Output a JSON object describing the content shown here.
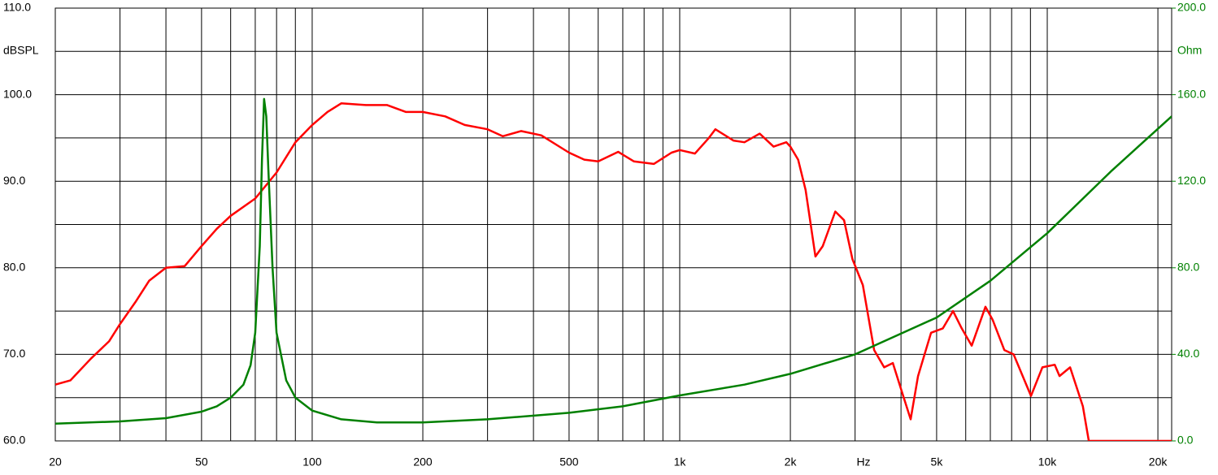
{
  "chart_data": {
    "type": "line",
    "y_label": "dBSPL",
    "y2_label": "Ohm",
    "x_label": "Hz",
    "xscale": "log",
    "grid": true,
    "xlim": [
      20,
      21800
    ],
    "xticks": [
      20,
      50,
      100,
      200,
      500,
      {
        "value": 1000,
        "label": "1k"
      },
      {
        "value": 2000,
        "label": "2k"
      },
      {
        "value": 5000,
        "label": "5k"
      },
      {
        "value": 10000,
        "label": "10k"
      },
      {
        "value": 20000,
        "label": "20k"
      }
    ],
    "xgrid": [
      30,
      40,
      60,
      70,
      80,
      90,
      300,
      400,
      600,
      700,
      800,
      900,
      3000,
      4000,
      6000,
      7000,
      8000,
      9000
    ],
    "ylim": [
      60,
      110
    ],
    "yticks": [
      {
        "value": 60,
        "label": "60.0"
      },
      {
        "value": 70,
        "label": "70.0"
      },
      {
        "value": 80,
        "label": "80.0"
      },
      {
        "value": 90,
        "label": "90.0"
      },
      {
        "value": 100,
        "label": "100.0"
      },
      {
        "value": 110,
        "label": "110.0"
      }
    ],
    "ygrid": [
      65,
      75,
      85,
      95,
      105
    ],
    "y2lim": [
      0,
      200
    ],
    "y2ticks": [
      {
        "value": 0,
        "label": "0.0"
      },
      {
        "value": 40,
        "label": "40.0"
      },
      {
        "value": 80,
        "label": "80.0"
      },
      {
        "value": 120,
        "label": "120.0"
      },
      {
        "value": 160,
        "label": "160.0"
      },
      {
        "value": 200,
        "label": "200.0"
      }
    ],
    "series": [
      {
        "color": "#ff0000",
        "x": [
          20,
          22,
          25,
          28,
          30,
          33,
          36,
          40,
          45,
          50,
          55,
          60,
          70,
          80,
          90,
          100,
          110,
          120,
          140,
          160,
          180,
          200,
          230,
          260,
          300,
          330,
          370,
          420,
          500,
          550,
          600,
          680,
          750,
          850,
          950,
          1000,
          1100,
          1200,
          1250,
          1400,
          1500,
          1650,
          1800,
          1950,
          2000,
          2100,
          2200,
          2340,
          2450,
          2650,
          2800,
          2950,
          3150,
          3380,
          3600,
          3800,
          4000,
          4250,
          4450,
          4830,
          5200,
          5540,
          5850,
          6230,
          6790,
          7100,
          7640,
          8100,
          9030,
          9700,
          10480,
          10800,
          11540,
          12500,
          12970,
          21800
        ],
        "values": [
          66.5,
          67,
          69.5,
          71.5,
          73.5,
          76,
          78.5,
          80,
          80.2,
          82.5,
          84.5,
          86,
          88,
          91,
          94.5,
          96.5,
          98,
          99,
          98.8,
          98.8,
          98,
          98,
          97.5,
          96.5,
          96,
          95.2,
          95.8,
          95.3,
          93.3,
          92.5,
          92.3,
          93.4,
          92.3,
          92,
          93.3,
          93.6,
          93.2,
          95,
          96,
          94.7,
          94.5,
          95.5,
          94,
          94.5,
          94,
          92.5,
          89,
          81.3,
          82.5,
          86.5,
          85.5,
          81,
          78,
          70.5,
          68.5,
          69,
          66,
          62.5,
          67.5,
          72.5,
          73,
          75,
          73,
          71,
          75.5,
          74,
          70.5,
          70,
          65.2,
          68.5,
          68.8,
          67.5,
          68.5,
          64,
          60,
          60
        ]
      },
      {
        "color": "#008000",
        "axis": "y2",
        "x": [
          20,
          30,
          40,
          50,
          55,
          60,
          65,
          68,
          70,
          72,
          73,
          74,
          75,
          76,
          78,
          80,
          85,
          90,
          100,
          120,
          150,
          200,
          300,
          500,
          700,
          1000,
          1500,
          2000,
          3000,
          5000,
          7000,
          10000,
          15000,
          21800
        ],
        "values": [
          8,
          9,
          10.5,
          13.5,
          16,
          20,
          26,
          35,
          50,
          90,
          130,
          158,
          150,
          125,
          80,
          50,
          28,
          20,
          14,
          10,
          8.5,
          8.5,
          10,
          13,
          16,
          21,
          26,
          31,
          40,
          57,
          74,
          96,
          125,
          150
        ]
      }
    ]
  }
}
